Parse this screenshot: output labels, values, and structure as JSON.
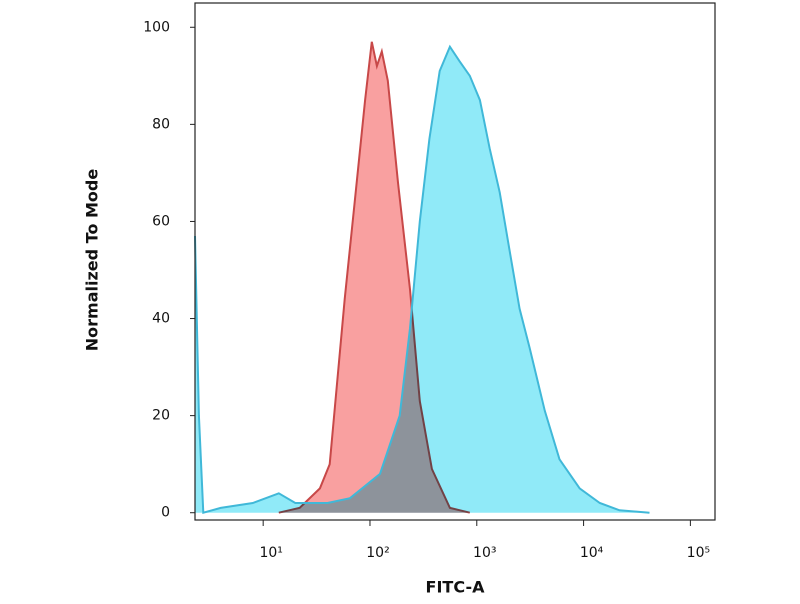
{
  "chart_data": {
    "type": "area",
    "xlabel": "FITC-A",
    "ylabel": "Normalized To Mode",
    "xscale": "log",
    "xlim": [
      2.3,
      170000
    ],
    "xticks": [
      {
        "value": 10,
        "label": "10¹"
      },
      {
        "value": 100,
        "label": "10²"
      },
      {
        "value": 1000,
        "label": "10³"
      },
      {
        "value": 10000,
        "label": "10⁴"
      },
      {
        "value": 100000,
        "label": "10⁵"
      }
    ],
    "ylim": [
      -1.5,
      105
    ],
    "yticks": [
      0,
      20,
      40,
      60,
      80,
      100
    ],
    "grid": false,
    "series": [
      {
        "color": "#f9a0a0",
        "stroke": "#c84848",
        "x": [
          14,
          22,
          34,
          42,
          58,
          72,
          90,
          104,
          116,
          129,
          147,
          183,
          237,
          293,
          380,
          560,
          860
        ],
        "values": [
          0,
          1,
          5,
          10,
          44,
          64,
          85,
          97,
          92,
          95,
          89,
          68,
          46,
          23,
          9,
          1,
          0
        ]
      },
      {
        "color": "#90eaf8",
        "stroke": "#40b8d8",
        "x": [
          2.3,
          2.5,
          2.75,
          4,
          8,
          14,
          20,
          40,
          65,
          124,
          190,
          237,
          293,
          360,
          450,
          560,
          690,
          860,
          1070,
          1320,
          1640,
          2030,
          2520,
          3120,
          4330,
          5950,
          9190,
          14200,
          21700,
          41400
        ],
        "values": [
          57,
          20,
          0,
          1,
          2,
          4,
          2,
          2,
          3,
          8,
          20,
          38,
          60,
          77,
          91,
          96,
          93,
          90,
          85,
          75,
          66,
          54,
          42,
          34,
          21,
          11,
          5,
          2,
          0.5,
          0
        ]
      }
    ]
  }
}
